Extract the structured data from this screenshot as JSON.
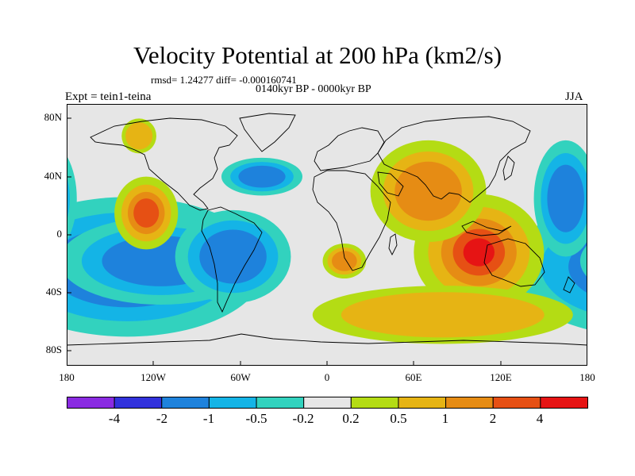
{
  "header": {
    "title": "Velocity Potential at 200 hPa (km2/s)",
    "stats": "rmsd= 1.24277 diff= -0.000160741",
    "period": "0140kyr BP - 0000kyr BP",
    "experiment": "Expt = tein1-teina",
    "season": "JJA"
  },
  "axes": {
    "lat_labels": [
      "80N",
      "40N",
      "0",
      "40S",
      "80S"
    ],
    "lon_labels": [
      "180",
      "120W",
      "60W",
      "0",
      "60E",
      "120E",
      "180"
    ]
  },
  "colorbar": {
    "colors": [
      "#8a2be2",
      "#3232dc",
      "#1e82dc",
      "#14b4e6",
      "#32d2be",
      "#e6e6e6",
      "#b4dc14",
      "#e6b414",
      "#e68c14",
      "#e65014",
      "#e61414"
    ],
    "labels": [
      "-4",
      "-2",
      "-1",
      "-0.5",
      "-0.2",
      "0.2",
      "0.5",
      "1",
      "2",
      "4"
    ]
  },
  "fields": [
    {
      "name": "south-pacific-low",
      "lon": -138,
      "lat": -22,
      "rx": 95,
      "ry": 48,
      "level": -3
    },
    {
      "name": "tropical-pacific-low",
      "lon": -115,
      "lat": -18,
      "rx": 70,
      "ry": 30,
      "level": -2
    },
    {
      "name": "south-america-low",
      "lon": -65,
      "lat": -15,
      "rx": 40,
      "ry": 32,
      "level": -2
    },
    {
      "name": "north-atlantic-low",
      "lon": -45,
      "lat": 40,
      "rx": 28,
      "ry": 13,
      "level": -1.3
    },
    {
      "name": "west-pacific-low",
      "lon": 165,
      "lat": 25,
      "rx": 22,
      "ry": 40,
      "level": -1.5
    },
    {
      "name": "east-pacific-high",
      "lon": -125,
      "lat": 15,
      "rx": 22,
      "ry": 25,
      "level": 3
    },
    {
      "name": "alaska-high",
      "lon": -130,
      "lat": 68,
      "rx": 12,
      "ry": 12,
      "level": 0.5
    },
    {
      "name": "indo-pacific-high",
      "lon": 105,
      "lat": -12,
      "rx": 45,
      "ry": 40,
      "level": 4
    },
    {
      "name": "asia-high",
      "lon": 70,
      "lat": 30,
      "rx": 40,
      "ry": 35,
      "level": 1.5
    },
    {
      "name": "africa-high",
      "lon": 12,
      "lat": -18,
      "rx": 15,
      "ry": 12,
      "level": 1.5
    },
    {
      "name": "southern-ocean-high",
      "lon": 80,
      "lat": -55,
      "rx": 90,
      "ry": 20,
      "level": 0.5
    }
  ]
}
